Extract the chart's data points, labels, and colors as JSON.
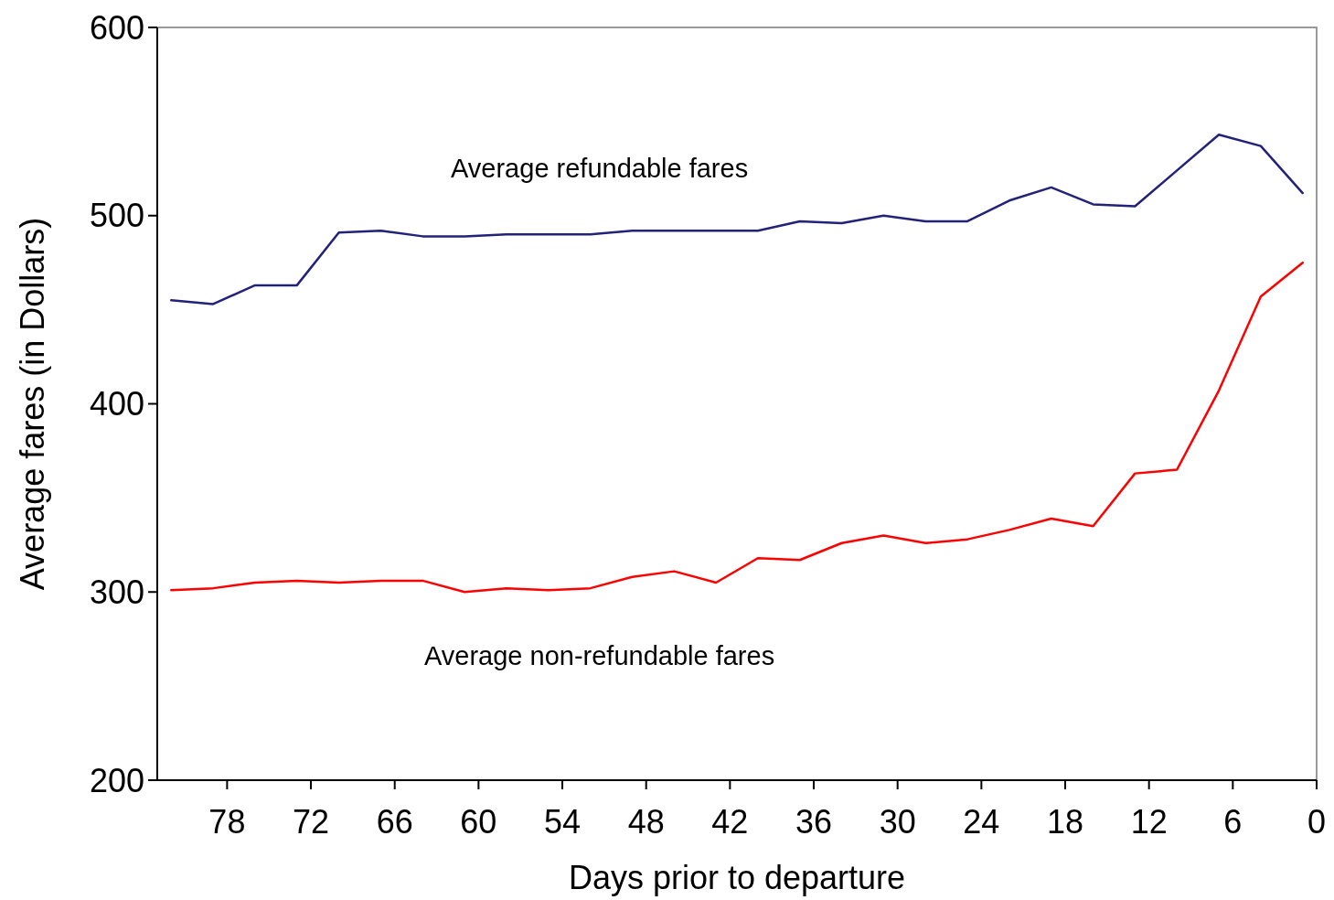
{
  "chart_data": {
    "type": "line",
    "xlabel": "Days prior to departure",
    "ylabel": "Average fares (in Dollars)",
    "x": [
      82,
      79,
      76,
      73,
      70,
      67,
      64,
      61,
      58,
      55,
      52,
      49,
      46,
      43,
      40,
      37,
      34,
      31,
      28,
      25,
      22,
      19,
      16,
      13,
      10,
      7,
      4,
      1
    ],
    "series": [
      {
        "name": "Average refundable fares",
        "color": "#22227a",
        "values": [
          455,
          453,
          463,
          463,
          491,
          492,
          489,
          489,
          490,
          490,
          490,
          492,
          492,
          492,
          492,
          497,
          496,
          500,
          497,
          497,
          508,
          515,
          506,
          505,
          524,
          543,
          537,
          512
        ]
      },
      {
        "name": "Average non-refundable fares",
        "color": "#ff0000",
        "values": [
          301,
          302,
          305,
          306,
          305,
          306,
          306,
          300,
          302,
          301,
          302,
          308,
          311,
          305,
          318,
          317,
          326,
          330,
          326,
          328,
          333,
          339,
          335,
          363,
          365,
          407,
          457,
          475
        ]
      }
    ],
    "xlim": [
      83,
      0
    ],
    "xticks": [
      78,
      72,
      66,
      60,
      54,
      48,
      42,
      36,
      30,
      24,
      18,
      12,
      6,
      0
    ],
    "ylim": [
      200,
      600
    ],
    "yticks": [
      200,
      300,
      400,
      500,
      600
    ],
    "grid": false,
    "legend": false,
    "marker": "none",
    "line_style": "solid"
  }
}
